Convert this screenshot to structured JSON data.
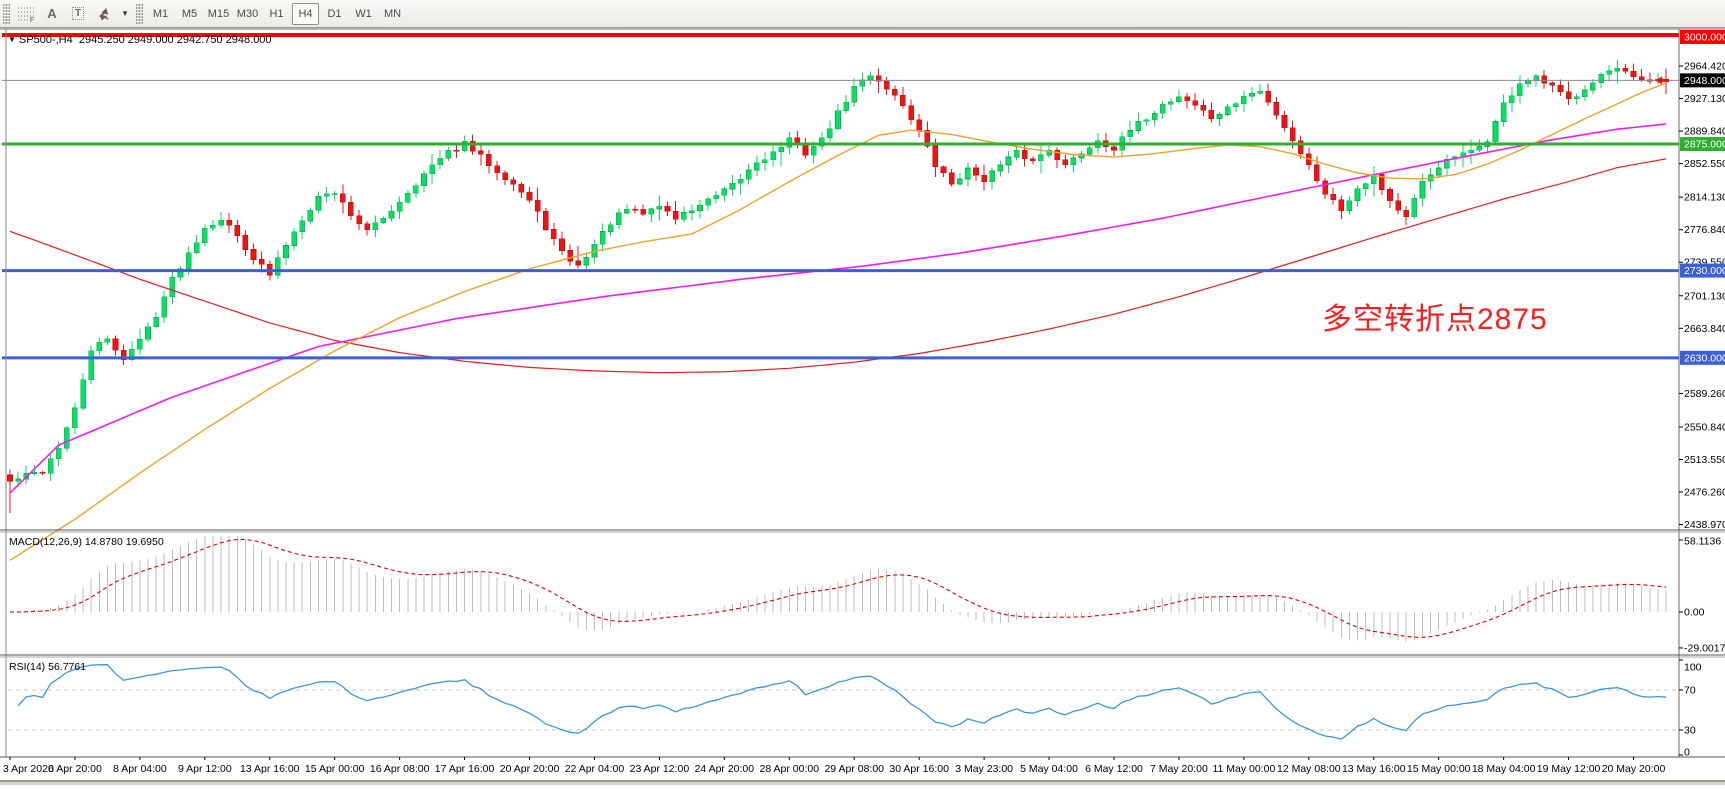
{
  "toolbar": {
    "tools": [
      {
        "id": "fibonacci",
        "glyph": "F"
      },
      {
        "id": "text",
        "glyph": "A"
      },
      {
        "id": "text-label",
        "glyph": "T"
      },
      {
        "id": "arrows",
        "glyph": "arrows"
      },
      {
        "id": "arrows-dropdown",
        "glyph": "▾"
      }
    ],
    "timeframes": [
      "M1",
      "M5",
      "M15",
      "M30",
      "H1",
      "H4",
      "D1",
      "W1",
      "MN"
    ],
    "active_timeframe": "H4"
  },
  "chart": {
    "title": {
      "symbol_tf": "SP500-,H4",
      "ohlc": "2945.250 2949.000 2942.750 2948.000",
      "dropdown_glyph": "▼"
    },
    "annotation": "多空转折点2875",
    "annotation_color": "#fe1c1c",
    "current_price": {
      "value": 2948.0,
      "label": "2948.000",
      "line_color": "#8c8c8c",
      "badge_bg": "#000000"
    },
    "price_axis_ticks": [
      {
        "price": 2964.42,
        "label": "2964.420"
      },
      {
        "price": 2927.13,
        "label": "2927.130"
      },
      {
        "price": 2889.84,
        "label": "2889.840"
      },
      {
        "price": 2852.55,
        "label": "2852.550"
      },
      {
        "price": 2814.13,
        "label": "2814.130"
      },
      {
        "price": 2776.84,
        "label": "2776.840"
      },
      {
        "price": 2739.55,
        "label": "2739.550"
      },
      {
        "price": 2701.13,
        "label": "2701.130"
      },
      {
        "price": 2663.84,
        "label": "2663.840"
      },
      {
        "price": 2589.26,
        "label": "2589.260"
      },
      {
        "price": 2550.84,
        "label": "2550.840"
      },
      {
        "price": 2513.55,
        "label": "2513.550"
      },
      {
        "price": 2476.26,
        "label": "2476.260"
      },
      {
        "price": 2438.97,
        "label": "2438.970"
      }
    ],
    "hlines": [
      {
        "name": "resistance-3000",
        "price": 3000.0,
        "label": "3000.000",
        "color": "#fe0000",
        "width": 4
      },
      {
        "name": "pivot-2875",
        "price": 2875.0,
        "label": "2875.000",
        "color": "#2fae2f",
        "width": 3
      },
      {
        "name": "support-2730",
        "price": 2730.0,
        "label": "2730.000",
        "color": "#3d5fd6",
        "width": 3
      },
      {
        "name": "support-2630",
        "price": 2630.0,
        "label": "2630.000",
        "color": "#3d5fd6",
        "width": 3
      }
    ],
    "colors": {
      "bull": "#0ade63",
      "bull_border": "#00b34d",
      "bear": "#ec1414",
      "bear_border": "#c40f0f",
      "ma_fast": "#efa229",
      "ma_mid": "#f21cf2",
      "ma_slow": "#e02020",
      "macd_histogram": "#bdbdbd",
      "macd_signal": "#e00000",
      "rsi_line": "#3e96d2",
      "rsi_levels": "#c4c4c4",
      "axis_text": "#000000",
      "frame": "#6a6a6a"
    },
    "chart_data": {
      "type": "candlestick",
      "symbol": "SP500-",
      "timeframe": "H4",
      "bars": 205,
      "last_ohlc": {
        "open": 2945.25,
        "high": 2949.0,
        "low": 2942.75,
        "close": 2948.0
      },
      "price_axis_range": {
        "top_price": 3005.7,
        "bottom_price": 2432.7
      },
      "close_anchors": [
        [
          0,
          2488
        ],
        [
          2,
          2495
        ],
        [
          4,
          2500
        ],
        [
          6,
          2528
        ],
        [
          8,
          2570
        ],
        [
          10,
          2640
        ],
        [
          12,
          2650
        ],
        [
          14,
          2630
        ],
        [
          16,
          2650
        ],
        [
          18,
          2680
        ],
        [
          20,
          2720
        ],
        [
          22,
          2750
        ],
        [
          24,
          2780
        ],
        [
          26,
          2790
        ],
        [
          28,
          2770
        ],
        [
          30,
          2745
        ],
        [
          32,
          2725
        ],
        [
          34,
          2760
        ],
        [
          36,
          2790
        ],
        [
          38,
          2815
        ],
        [
          40,
          2820
        ],
        [
          42,
          2795
        ],
        [
          44,
          2775
        ],
        [
          46,
          2790
        ],
        [
          48,
          2810
        ],
        [
          50,
          2830
        ],
        [
          52,
          2850
        ],
        [
          54,
          2865
        ],
        [
          56,
          2875
        ],
        [
          58,
          2860
        ],
        [
          60,
          2845
        ],
        [
          62,
          2830
        ],
        [
          64,
          2810
        ],
        [
          66,
          2780
        ],
        [
          68,
          2750
        ],
        [
          70,
          2735
        ],
        [
          72,
          2760
        ],
        [
          74,
          2785
        ],
        [
          76,
          2800
        ],
        [
          78,
          2795
        ],
        [
          80,
          2805
        ],
        [
          82,
          2790
        ],
        [
          84,
          2800
        ],
        [
          86,
          2810
        ],
        [
          88,
          2820
        ],
        [
          90,
          2835
        ],
        [
          92,
          2855
        ],
        [
          94,
          2865
        ],
        [
          96,
          2880
        ],
        [
          98,
          2865
        ],
        [
          100,
          2880
        ],
        [
          102,
          2910
        ],
        [
          104,
          2940
        ],
        [
          106,
          2955
        ],
        [
          108,
          2940
        ],
        [
          110,
          2920
        ],
        [
          112,
          2890
        ],
        [
          114,
          2850
        ],
        [
          116,
          2830
        ],
        [
          118,
          2845
        ],
        [
          120,
          2835
        ],
        [
          122,
          2850
        ],
        [
          124,
          2865
        ],
        [
          126,
          2855
        ],
        [
          128,
          2870
        ],
        [
          130,
          2850
        ],
        [
          132,
          2865
        ],
        [
          134,
          2880
        ],
        [
          136,
          2870
        ],
        [
          138,
          2890
        ],
        [
          140,
          2905
        ],
        [
          142,
          2920
        ],
        [
          144,
          2930
        ],
        [
          146,
          2920
        ],
        [
          148,
          2905
        ],
        [
          150,
          2915
        ],
        [
          152,
          2930
        ],
        [
          154,
          2935
        ],
        [
          156,
          2910
        ],
        [
          158,
          2880
        ],
        [
          160,
          2850
        ],
        [
          162,
          2820
        ],
        [
          164,
          2800
        ],
        [
          166,
          2825
        ],
        [
          168,
          2840
        ],
        [
          170,
          2810
        ],
        [
          172,
          2790
        ],
        [
          174,
          2830
        ],
        [
          176,
          2850
        ],
        [
          178,
          2860
        ],
        [
          180,
          2865
        ],
        [
          182,
          2880
        ],
        [
          184,
          2920
        ],
        [
          186,
          2945
        ],
        [
          188,
          2950
        ],
        [
          190,
          2940
        ],
        [
          192,
          2925
        ],
        [
          194,
          2940
        ],
        [
          196,
          2955
        ],
        [
          198,
          2960
        ],
        [
          200,
          2950
        ],
        [
          202,
          2945
        ],
        [
          204,
          2948
        ]
      ],
      "ma_fast_anchors": [
        [
          0,
          2398
        ],
        [
          8,
          2445
        ],
        [
          16,
          2498
        ],
        [
          24,
          2548
        ],
        [
          32,
          2595
        ],
        [
          40,
          2638
        ],
        [
          48,
          2676
        ],
        [
          56,
          2706
        ],
        [
          64,
          2732
        ],
        [
          72,
          2752
        ],
        [
          78,
          2763
        ],
        [
          84,
          2772
        ],
        [
          90,
          2800
        ],
        [
          96,
          2832
        ],
        [
          102,
          2862
        ],
        [
          107,
          2885
        ],
        [
          111,
          2891
        ],
        [
          116,
          2886
        ],
        [
          121,
          2877
        ],
        [
          126,
          2869
        ],
        [
          131,
          2863
        ],
        [
          136,
          2860
        ],
        [
          141,
          2864
        ],
        [
          146,
          2870
        ],
        [
          150,
          2874
        ],
        [
          154,
          2872
        ],
        [
          158,
          2864
        ],
        [
          162,
          2852
        ],
        [
          166,
          2842
        ],
        [
          170,
          2836
        ],
        [
          174,
          2835
        ],
        [
          178,
          2840
        ],
        [
          182,
          2852
        ],
        [
          186,
          2868
        ],
        [
          190,
          2886
        ],
        [
          194,
          2904
        ],
        [
          198,
          2921
        ],
        [
          201,
          2934
        ],
        [
          204,
          2945
        ]
      ],
      "ma_mid_anchors": [
        [
          0,
          2475
        ],
        [
          6,
          2530
        ],
        [
          20,
          2585
        ],
        [
          38,
          2643
        ],
        [
          55,
          2675
        ],
        [
          73,
          2700
        ],
        [
          90,
          2720
        ],
        [
          105,
          2735
        ],
        [
          117,
          2750
        ],
        [
          130,
          2770
        ],
        [
          142,
          2790
        ],
        [
          155,
          2815
        ],
        [
          167,
          2838
        ],
        [
          180,
          2862
        ],
        [
          190,
          2880
        ],
        [
          198,
          2892
        ],
        [
          204,
          2898
        ]
      ],
      "ma_slow_anchors": [
        [
          0,
          2775
        ],
        [
          8,
          2748
        ],
        [
          16,
          2720
        ],
        [
          24,
          2695
        ],
        [
          32,
          2670
        ],
        [
          40,
          2650
        ],
        [
          48,
          2636
        ],
        [
          56,
          2626
        ],
        [
          64,
          2619
        ],
        [
          72,
          2615
        ],
        [
          80,
          2613
        ],
        [
          88,
          2614
        ],
        [
          96,
          2618
        ],
        [
          104,
          2625
        ],
        [
          112,
          2635
        ],
        [
          120,
          2648
        ],
        [
          128,
          2663
        ],
        [
          136,
          2680
        ],
        [
          144,
          2700
        ],
        [
          152,
          2722
        ],
        [
          160,
          2745
        ],
        [
          168,
          2768
        ],
        [
          176,
          2790
        ],
        [
          184,
          2812
        ],
        [
          192,
          2832
        ],
        [
          198,
          2848
        ],
        [
          204,
          2858
        ]
      ],
      "x_labels": [
        "3 Apr 2020",
        "6 Apr 20:00",
        "8 Apr 04:00",
        "9 Apr 12:00",
        "13 Apr 16:00",
        "15 Apr 00:00",
        "16 Apr 08:00",
        "17 Apr 16:00",
        "20 Apr 20:00",
        "22 Apr 04:00",
        "23 Apr 12:00",
        "24 Apr 20:00",
        "28 Apr 00:00",
        "29 Apr 08:00",
        "30 Apr 16:00",
        "3 May 23:00",
        "5 May 04:00",
        "6 May 12:00",
        "7 May 20:00",
        "11 May 00:00",
        "12 May 08:00",
        "13 May 16:00",
        "15 May 00:00",
        "18 May 04:00",
        "19 May 12:00",
        "20 May 20:00"
      ],
      "bars_per_label": 8
    }
  },
  "macd": {
    "label": "MACD(12,26,9)",
    "values": "14.8780 19.6950",
    "main": 14.878,
    "signal": 19.695,
    "axis_labels": [
      {
        "value": 58.1136,
        "label": "58.1136"
      },
      {
        "value": 0,
        "label": "0.00"
      },
      {
        "value": -29.0017,
        "label": "-29.0017"
      }
    ]
  },
  "rsi": {
    "label": "RSI(14)",
    "value": "56.7761",
    "axis_labels": [
      {
        "value": 100,
        "label": "100"
      },
      {
        "value": 70,
        "label": "70"
      },
      {
        "value": 30,
        "label": "30"
      },
      {
        "value": 0,
        "label": "0"
      }
    ],
    "dashed_levels": [
      70,
      30
    ]
  }
}
